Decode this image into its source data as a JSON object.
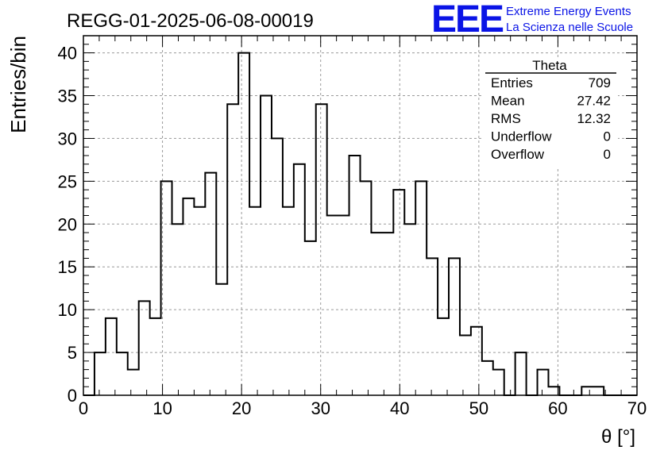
{
  "header": {
    "run_title": "REGG-01-2025-06-08-00019",
    "logo_text": "EEE",
    "logo_line1": "Extreme Energy Events",
    "logo_line2": "La Scienza nelle Scuole",
    "logo_color": "#0a14e6"
  },
  "stats": {
    "title": "Theta",
    "rows": [
      {
        "label": "Entries",
        "value": "709"
      },
      {
        "label": "Mean",
        "value": "27.42"
      },
      {
        "label": "RMS",
        "value": "12.32"
      },
      {
        "label": "Underflow",
        "value": "0"
      },
      {
        "label": "Overflow",
        "value": "0"
      }
    ]
  },
  "chart_data": {
    "type": "bar",
    "subtype": "step-histogram",
    "xlabel": "θ [°]",
    "ylabel": "Entries/bin",
    "xlim": [
      0,
      70
    ],
    "ylim": [
      0,
      42
    ],
    "xticks": [
      0,
      10,
      20,
      30,
      40,
      50,
      60,
      70
    ],
    "yticks": [
      0,
      5,
      10,
      15,
      20,
      25,
      30,
      35,
      40
    ],
    "grid": true,
    "bin_width": 1.4,
    "bin_start": 0,
    "values": [
      0,
      5,
      9,
      5,
      3,
      11,
      9,
      25,
      20,
      23,
      22,
      26,
      13,
      34,
      40,
      22,
      35,
      30,
      22,
      27,
      18,
      34,
      21,
      21,
      28,
      25,
      19,
      19,
      24,
      20,
      25,
      16,
      9,
      16,
      7,
      8,
      4,
      3,
      0,
      5,
      0,
      3,
      1,
      0,
      0,
      1,
      1,
      0,
      0,
      0
    ],
    "line_color": "#000000"
  }
}
